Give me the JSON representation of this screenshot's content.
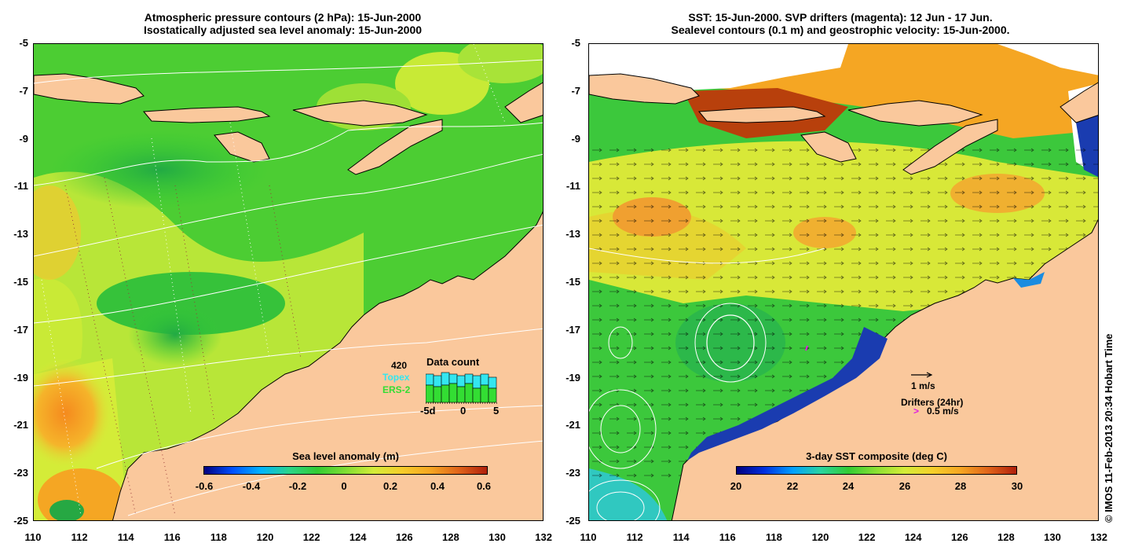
{
  "left": {
    "title_line1": "Atmospheric pressure contours (2 hPa): 15-Jun-2000",
    "title_line2": "Isostatically adjusted sea level anomaly: 15-Jun-2000",
    "colorbar_label": "Sea level anomaly (m)",
    "colorbar_ticks": [
      "-0.6",
      "-0.4",
      "-0.2",
      "0",
      "0.2",
      "0.4",
      "0.6"
    ],
    "inset": {
      "count": "420",
      "title": "Data count",
      "legend1": "Topex",
      "legend2": "ERS-2",
      "xticks": [
        "-5d",
        "0",
        "5"
      ],
      "colors": {
        "topex": "#33e6f0",
        "ers2": "#33dd33"
      }
    }
  },
  "right": {
    "title_line1": "SST: 15-Jun-2000. SVP drifters (magenta): 12 Jun - 17 Jun.",
    "title_line2": "Sealevel contours (0.1 m) and geostrophic velocity: 15-Jun-2000.",
    "colorbar_label": "3-day SST composite (deg C)",
    "colorbar_ticks": [
      "20",
      "22",
      "24",
      "26",
      "28",
      "30"
    ],
    "scale_label": "1 m/s",
    "drifters_label": "Drifters (24hr)",
    "drifters_speed": "0.5 m/s"
  },
  "axes": {
    "lat_ticks": [
      "-5",
      "-7",
      "-9",
      "-11",
      "-13",
      "-15",
      "-17",
      "-19",
      "-21",
      "-23",
      "-25"
    ],
    "lon_ticks": [
      "110",
      "112",
      "114",
      "116",
      "118",
      "120",
      "122",
      "124",
      "126",
      "128",
      "130",
      "132"
    ]
  },
  "credit": "© IMOS 11-Feb-2013 20:34 Hobart Time",
  "colors": {
    "land": "#fac89c",
    "ocean_green": "#33cc33",
    "yellow_green": "#ccee33",
    "orange": "#f5a623"
  }
}
